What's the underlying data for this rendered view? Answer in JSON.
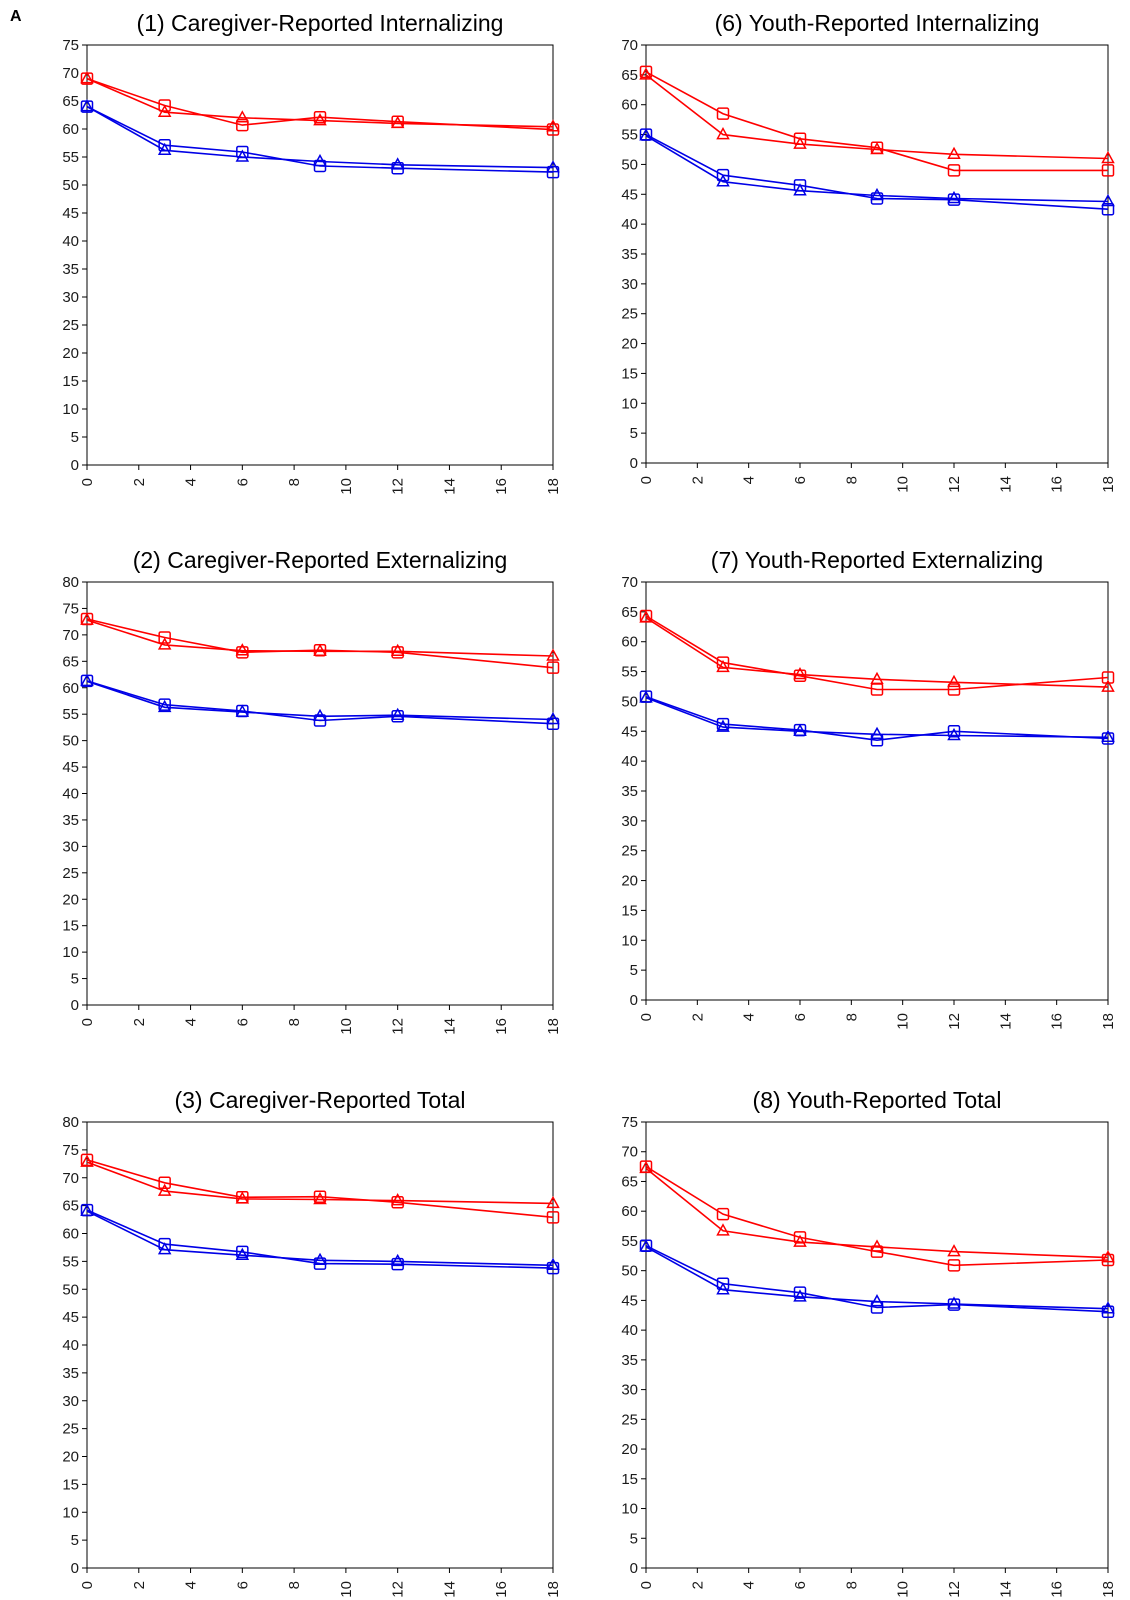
{
  "panel_letter": "A",
  "colors": {
    "red": "#ff0000",
    "blue": "#0000e6",
    "axis": "#000000"
  },
  "chart_data": [
    {
      "type": "line",
      "title": "(1) Caregiver-Reported Internalizing",
      "xlim": [
        0,
        18
      ],
      "ylim": [
        0,
        75
      ],
      "x_ticks": [
        0,
        2,
        4,
        6,
        8,
        10,
        12,
        14,
        16,
        18
      ],
      "y_ticks": [
        0,
        5,
        10,
        15,
        20,
        25,
        30,
        35,
        40,
        45,
        50,
        55,
        60,
        65,
        70,
        75
      ],
      "x": [
        0,
        3,
        6,
        9,
        12,
        18
      ],
      "series": [
        {
          "color": "red",
          "marker": "square",
          "values": [
            69,
            64.2,
            60.7,
            62.1,
            61.3,
            59.9
          ]
        },
        {
          "color": "red",
          "marker": "triangle",
          "values": [
            69,
            63,
            62,
            61.5,
            61,
            60.4
          ]
        },
        {
          "color": "blue",
          "marker": "square",
          "values": [
            64,
            57.1,
            55.9,
            53.4,
            53,
            52.3
          ]
        },
        {
          "color": "blue",
          "marker": "triangle",
          "values": [
            64,
            56.2,
            55,
            54.2,
            53.6,
            53.1
          ]
        }
      ]
    },
    {
      "type": "line",
      "title": "(6) Youth-Reported Internalizing",
      "xlim": [
        0,
        18
      ],
      "ylim": [
        0,
        70
      ],
      "x_ticks": [
        0,
        2,
        4,
        6,
        8,
        10,
        12,
        14,
        16,
        18
      ],
      "y_ticks": [
        0,
        5,
        10,
        15,
        20,
        25,
        30,
        35,
        40,
        45,
        50,
        55,
        60,
        65,
        70
      ],
      "x": [
        0,
        3,
        6,
        9,
        12,
        18
      ],
      "series": [
        {
          "color": "red",
          "marker": "square",
          "values": [
            65.5,
            58.5,
            54.3,
            52.8,
            49,
            49
          ]
        },
        {
          "color": "red",
          "marker": "triangle",
          "values": [
            65,
            55,
            53.4,
            52.5,
            51.7,
            51
          ]
        },
        {
          "color": "blue",
          "marker": "square",
          "values": [
            55,
            48.2,
            46.5,
            44.3,
            44.1,
            42.5
          ]
        },
        {
          "color": "blue",
          "marker": "triangle",
          "values": [
            54.8,
            47.1,
            45.6,
            44.8,
            44.3,
            43.8
          ]
        }
      ]
    },
    {
      "type": "line",
      "title": "(2) Caregiver-Reported Externalizing",
      "xlim": [
        0,
        18
      ],
      "ylim": [
        0,
        80
      ],
      "x_ticks": [
        0,
        2,
        4,
        6,
        8,
        10,
        12,
        14,
        16,
        18
      ],
      "y_ticks": [
        0,
        5,
        10,
        15,
        20,
        25,
        30,
        35,
        40,
        45,
        50,
        55,
        60,
        65,
        70,
        75,
        80
      ],
      "x": [
        0,
        3,
        6,
        9,
        12,
        18
      ],
      "series": [
        {
          "color": "red",
          "marker": "square",
          "values": [
            73,
            69.5,
            66.7,
            67.1,
            66.7,
            63.8
          ]
        },
        {
          "color": "red",
          "marker": "triangle",
          "values": [
            72.8,
            68.1,
            67,
            66.9,
            66.9,
            66
          ]
        },
        {
          "color": "blue",
          "marker": "square",
          "values": [
            61.3,
            56.8,
            55.6,
            53.8,
            54.6,
            53.2
          ]
        },
        {
          "color": "blue",
          "marker": "triangle",
          "values": [
            61.2,
            56.3,
            55.4,
            54.6,
            54.8,
            54
          ]
        }
      ]
    },
    {
      "type": "line",
      "title": "(7) Youth-Reported Externalizing",
      "xlim": [
        0,
        18
      ],
      "ylim": [
        0,
        70
      ],
      "x_ticks": [
        0,
        2,
        4,
        6,
        8,
        10,
        12,
        14,
        16,
        18
      ],
      "y_ticks": [
        0,
        5,
        10,
        15,
        20,
        25,
        30,
        35,
        40,
        45,
        50,
        55,
        60,
        65,
        70
      ],
      "x": [
        0,
        3,
        6,
        9,
        12,
        18
      ],
      "series": [
        {
          "color": "red",
          "marker": "square",
          "values": [
            64.3,
            56.5,
            54.3,
            52,
            52,
            54
          ]
        },
        {
          "color": "red",
          "marker": "triangle",
          "values": [
            64,
            55.7,
            54.5,
            53.7,
            53.2,
            52.4
          ]
        },
        {
          "color": "blue",
          "marker": "square",
          "values": [
            50.8,
            46.2,
            45.2,
            43.5,
            45,
            43.8
          ]
        },
        {
          "color": "blue",
          "marker": "triangle",
          "values": [
            50.6,
            45.7,
            45,
            44.5,
            44.3,
            44
          ]
        }
      ]
    },
    {
      "type": "line",
      "title": "(3) Caregiver-Reported Total",
      "xlim": [
        0,
        18
      ],
      "ylim": [
        0,
        80
      ],
      "x_ticks": [
        0,
        2,
        4,
        6,
        8,
        10,
        12,
        14,
        16,
        18
      ],
      "y_ticks": [
        0,
        5,
        10,
        15,
        20,
        25,
        30,
        35,
        40,
        45,
        50,
        55,
        60,
        65,
        70,
        75,
        80
      ],
      "x": [
        0,
        3,
        6,
        9,
        12,
        18
      ],
      "series": [
        {
          "color": "red",
          "marker": "square",
          "values": [
            73.2,
            69.1,
            66.5,
            66.6,
            65.6,
            62.9
          ]
        },
        {
          "color": "red",
          "marker": "triangle",
          "values": [
            72.8,
            67.6,
            66.2,
            66.1,
            65.9,
            65.4
          ]
        },
        {
          "color": "blue",
          "marker": "square",
          "values": [
            64.2,
            58.1,
            56.7,
            54.6,
            54.5,
            53.8
          ]
        },
        {
          "color": "blue",
          "marker": "triangle",
          "values": [
            64,
            57.1,
            56.1,
            55.2,
            55,
            54.3
          ]
        }
      ]
    },
    {
      "type": "line",
      "title": "(8) Youth-Reported Total",
      "xlim": [
        0,
        18
      ],
      "ylim": [
        0,
        75
      ],
      "x_ticks": [
        0,
        2,
        4,
        6,
        8,
        10,
        12,
        14,
        16,
        18
      ],
      "y_ticks": [
        0,
        5,
        10,
        15,
        20,
        25,
        30,
        35,
        40,
        45,
        50,
        55,
        60,
        65,
        70,
        75
      ],
      "x": [
        0,
        3,
        6,
        9,
        12,
        18
      ],
      "series": [
        {
          "color": "red",
          "marker": "square",
          "values": [
            67.5,
            59.5,
            55.6,
            53.2,
            50.9,
            51.8
          ]
        },
        {
          "color": "red",
          "marker": "triangle",
          "values": [
            67.2,
            56.7,
            54.8,
            54,
            53.2,
            52.2
          ]
        },
        {
          "color": "blue",
          "marker": "square",
          "values": [
            54.2,
            47.8,
            46.3,
            43.8,
            44.3,
            43.1
          ]
        },
        {
          "color": "blue",
          "marker": "triangle",
          "values": [
            54,
            46.8,
            45.6,
            44.8,
            44.4,
            43.6
          ]
        }
      ]
    }
  ]
}
